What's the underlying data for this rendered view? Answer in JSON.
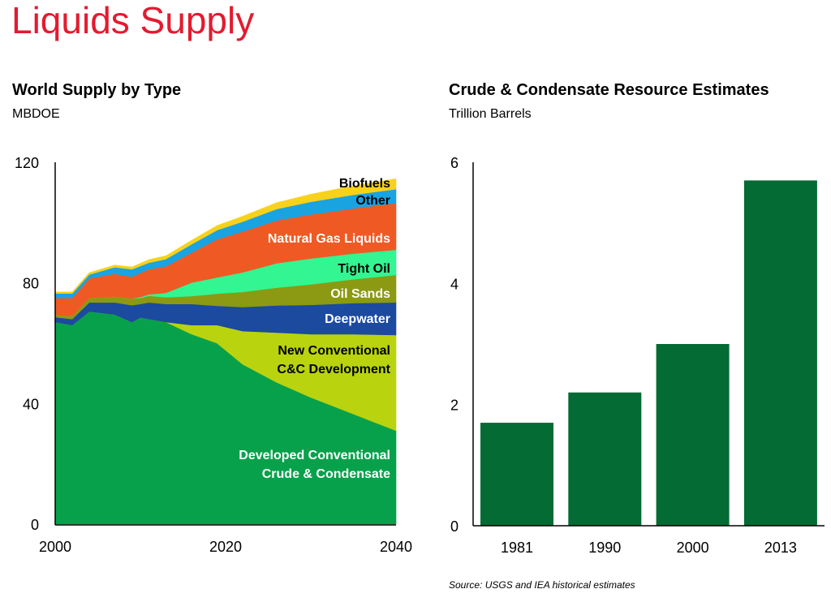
{
  "page": {
    "title": "Liquids Supply",
    "source": "Source: USGS and IEA historical estimates"
  },
  "chart_data": [
    {
      "type": "area",
      "stacked": true,
      "title": "World Supply by Type",
      "subtitle": "MBDOE",
      "xlabel": "",
      "ylabel": "MBDOE",
      "xlim": [
        2000,
        2040
      ],
      "ylim": [
        0,
        120
      ],
      "x_ticks": [
        "2000",
        "2020",
        "2040"
      ],
      "y_ticks": [
        "0",
        "40",
        "80",
        "120"
      ],
      "grid": false,
      "legend": "inline-right",
      "x": [
        2000,
        2002,
        2004,
        2007,
        2009,
        2010,
        2011,
        2013,
        2016,
        2019,
        2022,
        2026,
        2030,
        2035,
        2040
      ],
      "series": [
        {
          "name": "Developed Conventional Crude & Condensate",
          "label_lines": [
            "Developed Conventional",
            "Crude & Condensate"
          ],
          "color": "#08a14b",
          "label_color": "#ffffff",
          "values": [
            67,
            66,
            70.5,
            69.5,
            67,
            68.5,
            68,
            67,
            63,
            60,
            53,
            47,
            42,
            36.5,
            31
          ]
        },
        {
          "name": "New Conventional C&C Development",
          "label_lines": [
            "New Conventional",
            "C&C Development"
          ],
          "color": "#b9d30f",
          "label_color": "#000000",
          "values": [
            0,
            0,
            0,
            0,
            0,
            0,
            0,
            0,
            3,
            6,
            11,
            16.5,
            21,
            26.5,
            31.7
          ]
        },
        {
          "name": "Deepwater",
          "label_lines": [
            "Deepwater"
          ],
          "color": "#1b4a9f",
          "label_color": "#ffffff",
          "values": [
            1.6,
            2.0,
            3.0,
            4.0,
            5.6,
            4.5,
            5.5,
            6.0,
            7.0,
            6.4,
            8.0,
            9.0,
            9.7,
            10.3,
            10.8
          ]
        },
        {
          "name": "Oil Sands",
          "label_lines": [
            "Oil Sands"
          ],
          "color": "#8b9a12",
          "label_color": "#ffffff",
          "values": [
            0.7,
            1.0,
            1.5,
            2.0,
            2.2,
            2.0,
            2.2,
            2.2,
            2.6,
            4.0,
            5.0,
            5.9,
            6.8,
            7.9,
            9.1
          ]
        },
        {
          "name": "Tight Oil",
          "label_lines": [
            "Tight Oil"
          ],
          "color": "#33f591",
          "label_color": "#000000",
          "values": [
            0,
            0,
            0,
            0,
            0,
            0.3,
            0.5,
            1.5,
            4.5,
            5.4,
            6.5,
            8.1,
            8.6,
            8.5,
            8.4
          ]
        },
        {
          "name": "Natural Gas Liquids",
          "label_lines": [
            "Natural Gas Liquids"
          ],
          "color": "#ef5a24",
          "label_color": "#ffffff",
          "values": [
            5.7,
            6.0,
            6.5,
            7.5,
            7.2,
            8.0,
            8.3,
            8.8,
            9.9,
            12.7,
            13.5,
            14.2,
            14.6,
            15.0,
            15.5
          ]
        },
        {
          "name": "Other",
          "label_lines": [
            "Other"
          ],
          "color": "#1aa3e1",
          "label_color": "#000000",
          "values": [
            1.5,
            1.5,
            1.3,
            2.2,
            2.5,
            2.3,
            2.2,
            2.4,
            2.8,
            3.0,
            3.3,
            3.8,
            4.2,
            4.5,
            4.6
          ]
        },
        {
          "name": "Biofuels",
          "label_lines": [
            "Biofuels"
          ],
          "color": "#f8d21a",
          "label_color": "#000000",
          "values": [
            0.5,
            0.5,
            0.6,
            0.7,
            0.8,
            0.9,
            1.0,
            1.1,
            1.3,
            1.5,
            1.8,
            2.1,
            2.5,
            3.0,
            3.4
          ]
        }
      ]
    },
    {
      "type": "bar",
      "title": "Crude & Condensate Resource Estimates",
      "subtitle": "Trillion Barrels",
      "xlabel": "",
      "ylabel": "Trillion Barrels",
      "ylim": [
        0,
        6
      ],
      "y_ticks": [
        "0",
        "2",
        "4",
        "6"
      ],
      "grid": false,
      "categories": [
        "1981",
        "1990",
        "2000",
        "2013"
      ],
      "values": [
        1.7,
        2.2,
        3.0,
        5.7
      ],
      "color": "#036b33"
    }
  ]
}
